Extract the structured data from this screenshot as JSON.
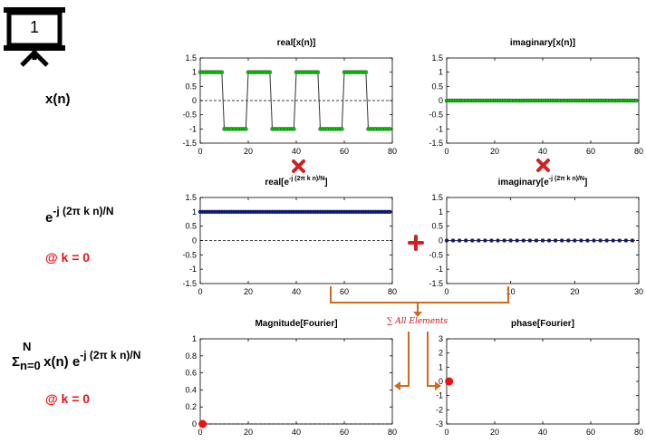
{
  "slide": {
    "number": "1",
    "icon": "presentation-board-icon"
  },
  "rows": {
    "xn": {
      "label": "x(n)"
    },
    "kernel": {
      "base": "e",
      "exponent": "-j (2π k n)/N",
      "at_k": "@ k = 0"
    },
    "sum": {
      "sigma": "Σ",
      "sup": "N",
      "sub": "n=0",
      "body": " x(n) e",
      "exponent": "-j (2π k n)/N",
      "at_k": "@ k = 0"
    }
  },
  "operators": {
    "multiply_color": "#cc2222",
    "plus_color": "#cc2222"
  },
  "arrow": {
    "label": "∑ All Elements",
    "color": "#d4691c",
    "label_color": "#cc1111"
  },
  "colors": {
    "green_series": "#00cc00",
    "blue_series": "#0a1a8c",
    "red_point": "#ee1111"
  },
  "chart_data": [
    {
      "id": "real-x",
      "type": "line",
      "title": "real[x(n)]",
      "xlim": [
        0,
        80
      ],
      "ylim": [
        -1.5,
        1.5
      ],
      "xticks": [
        0,
        20,
        40,
        60,
        80
      ],
      "yticks": [
        -1.5,
        -1,
        -0.5,
        0,
        0.5,
        1,
        1.5
      ],
      "zero_line": true,
      "marker_color": "#00cc00",
      "series": [
        {
          "pattern": "square",
          "period": 20,
          "high": 1,
          "low": -1,
          "high_first": 10,
          "n_start": 0,
          "n_end": 79
        }
      ]
    },
    {
      "id": "imag-x",
      "type": "line",
      "title": "imaginary[x(n)]",
      "xlim": [
        0,
        80
      ],
      "ylim": [
        -1.5,
        1.5
      ],
      "xticks": [
        0,
        20,
        40,
        60,
        80
      ],
      "yticks": [
        -1.5,
        -1,
        -0.5,
        0,
        0.5,
        1,
        1.5
      ],
      "zero_line": true,
      "marker_color": "#00cc00",
      "series": [
        {
          "pattern": "constant",
          "value": 0,
          "n_start": 0,
          "n_end": 79
        }
      ]
    },
    {
      "id": "real-e",
      "type": "line",
      "title": "real[e",
      "title_sup": "-j (2π k n)/N",
      "title_tail": "]",
      "xlim": [
        0,
        80
      ],
      "ylim": [
        -1.5,
        1.5
      ],
      "xticks": [
        0,
        20,
        40,
        60,
        80
      ],
      "yticks": [
        -1.5,
        -1,
        -0.5,
        0,
        0.5,
        1,
        1.5
      ],
      "zero_line": true,
      "marker_color": "#0a1a8c",
      "series": [
        {
          "pattern": "constant",
          "value": 1,
          "n_start": 0,
          "n_end": 79
        }
      ]
    },
    {
      "id": "imag-e",
      "type": "line",
      "title": "imaginary[e",
      "title_sup": "-j (2π k n)/N",
      "title_tail": "]",
      "xlim": [
        0,
        30
      ],
      "ylim": [
        -1.5,
        1.5
      ],
      "xticks": [
        0,
        10,
        20,
        30
      ],
      "yticks": [
        -1.5,
        -1,
        -0.5,
        0,
        0.5,
        1,
        1.5
      ],
      "zero_line": true,
      "marker_color": "#0a1a8c",
      "series": [
        {
          "pattern": "constant",
          "value": 0,
          "n_start": 0,
          "n_end": 29
        }
      ]
    },
    {
      "id": "mag-f",
      "type": "scatter",
      "title": "Magnitude[Fourier]",
      "xlim": [
        0,
        80
      ],
      "ylim": [
        0,
        1
      ],
      "xticks": [
        0,
        20,
        40,
        60,
        80
      ],
      "yticks": [
        0,
        0.2,
        0.4,
        0.6,
        0.8,
        1
      ],
      "zero_line": true,
      "marker_color": "#ee1111",
      "series": [
        {
          "points": [
            [
              1,
              0
            ]
          ]
        }
      ]
    },
    {
      "id": "phase-f",
      "type": "scatter",
      "title": "phase[Fourier]",
      "xlim": [
        0,
        80
      ],
      "ylim": [
        -3,
        3
      ],
      "xticks": [
        0,
        20,
        40,
        60,
        80
      ],
      "yticks": [
        -3,
        -2,
        -1,
        0,
        1,
        2,
        3
      ],
      "zero_line": false,
      "marker_color": "#ee1111",
      "series": [
        {
          "points": [
            [
              1,
              0
            ]
          ]
        }
      ]
    }
  ]
}
